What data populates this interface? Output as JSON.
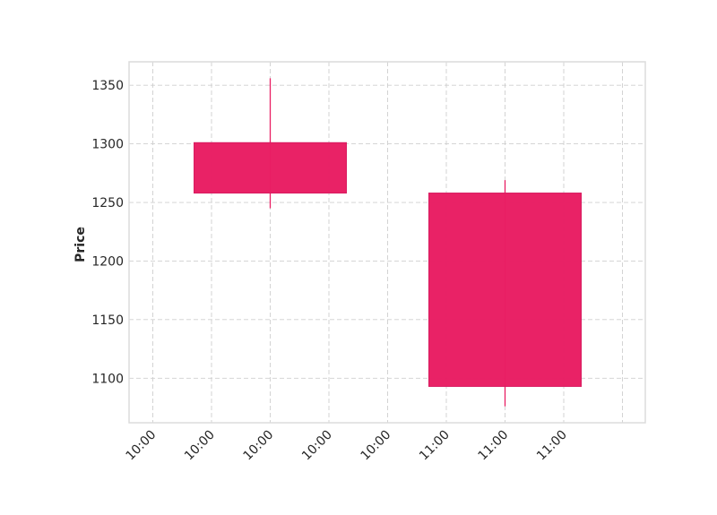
{
  "chart_data": {
    "type": "candlestick",
    "ylabel": "Price",
    "ylim": [
      1062,
      1370
    ],
    "y_ticks": [
      1100,
      1150,
      1200,
      1250,
      1300,
      1350
    ],
    "x_tick_labels": [
      "10:00",
      "10:00",
      "10:00",
      "10:00",
      "10:00",
      "11:00",
      "11:00",
      "11:00"
    ],
    "grid": true,
    "color": "#e91e63",
    "candles": [
      {
        "open": 1301,
        "close": 1258,
        "high": 1356,
        "low": 1245
      },
      {
        "open": 1258,
        "close": 1093,
        "high": 1269,
        "low": 1076
      }
    ]
  }
}
